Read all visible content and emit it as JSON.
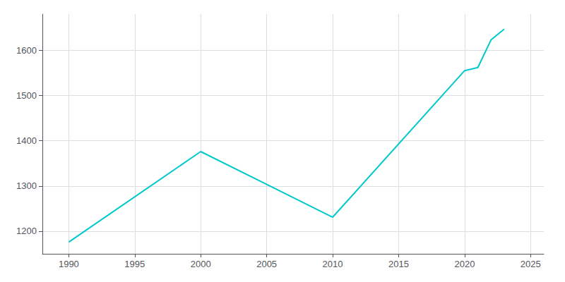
{
  "chart_data": {
    "type": "line",
    "x": [
      1990,
      2000,
      2010,
      2020,
      2021,
      2022,
      2023
    ],
    "values": [
      1176,
      1376,
      1231,
      1555,
      1562,
      1623,
      1647
    ],
    "color": "#00c8cc",
    "xlim": [
      1988,
      2026
    ],
    "ylim": [
      1150,
      1680
    ],
    "xticks": [
      1990,
      1995,
      2000,
      2005,
      2010,
      2015,
      2020,
      2025
    ],
    "yticks": [
      1200,
      1300,
      1400,
      1500,
      1600
    ],
    "grid": true
  }
}
